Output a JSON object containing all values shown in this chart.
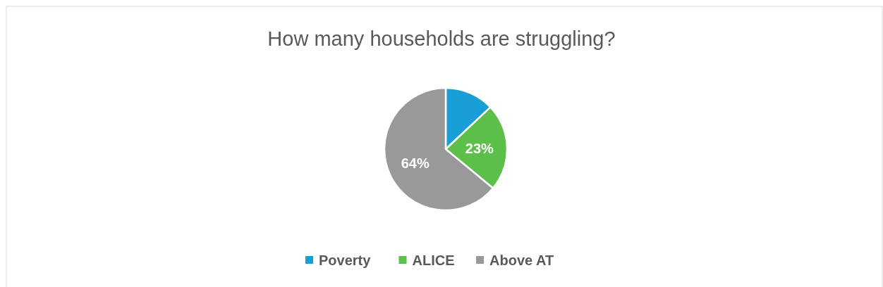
{
  "chart_data": {
    "type": "pie",
    "title": "How many households are struggling?",
    "categories": [
      "Poverty",
      "ALICE",
      "Above AT"
    ],
    "values": [
      13,
      23,
      64
    ],
    "colors": [
      "#1a9ed8",
      "#5cbf4a",
      "#999999"
    ],
    "value_labels": [
      null,
      "23%",
      "64%"
    ],
    "legend": "bottom"
  }
}
